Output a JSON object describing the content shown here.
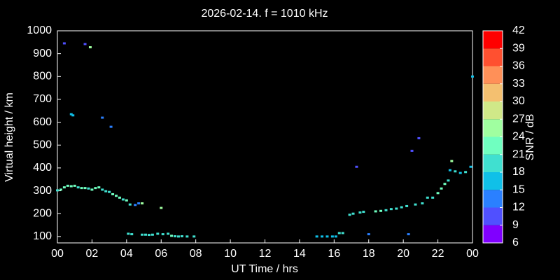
{
  "chart_data": {
    "type": "scatter",
    "title": "2026-02-14. f = 1010 kHz",
    "x_label": "UT Time / hrs",
    "y_label": "Virtual height / km",
    "xlim": [
      0,
      24
    ],
    "xticks": [
      {
        "value": 0,
        "label": "00"
      },
      {
        "value": 2,
        "label": "02"
      },
      {
        "value": 4,
        "label": "04"
      },
      {
        "value": 6,
        "label": "06"
      },
      {
        "value": 8,
        "label": "08"
      },
      10,
      12,
      14,
      16,
      18,
      20,
      22,
      {
        "value": 24,
        "label": "00"
      }
    ],
    "ylim": [
      72,
      1000
    ],
    "yticks": [
      100,
      200,
      300,
      400,
      500,
      600,
      700,
      800,
      900,
      1000
    ],
    "colorbar_label": "SNR / dB",
    "colorbar_ticks": [
      6,
      9,
      12,
      15,
      18,
      21,
      24,
      27,
      30,
      33,
      36,
      39,
      42
    ],
    "colorbar_colors": [
      "#8000ff",
      "#5050ff",
      "#2a80ff",
      "#10c0e8",
      "#40e0d0",
      "#70ffc0",
      "#a0ffa0",
      "#d0e888",
      "#f4c070",
      "#ff9058",
      "#ff5030",
      "#ff0000"
    ],
    "x": [
      0.0,
      0.2,
      0.4,
      0.6,
      0.8,
      1.0,
      1.2,
      1.4,
      1.6,
      1.8,
      2.0,
      2.2,
      2.4,
      2.6,
      2.8,
      3.0,
      3.2,
      3.4,
      3.6,
      3.8,
      4.0,
      4.2,
      4.5,
      4.7,
      4.9,
      0.4,
      1.6,
      1.9,
      0.8,
      0.9,
      2.6,
      3.1,
      6.0,
      4.1,
      4.3,
      4.9,
      5.1,
      5.3,
      5.5,
      5.8,
      6.1,
      6.4,
      6.6,
      6.8,
      7.0,
      7.2,
      7.5,
      7.9,
      15.0,
      15.3,
      15.6,
      15.9,
      16.1,
      16.3,
      16.5,
      16.9,
      17.1,
      17.3,
      17.5,
      17.7,
      18.0,
      18.4,
      18.7,
      19.0,
      19.3,
      19.6,
      19.9,
      20.2,
      20.3,
      20.5,
      20.7,
      20.9,
      21.1,
      21.4,
      21.7,
      22.0,
      22.2,
      22.4,
      22.6,
      22.7,
      22.8,
      23.0,
      23.3,
      23.6,
      23.9,
      24.0
    ],
    "y": [
      302,
      305,
      315,
      322,
      320,
      322,
      315,
      312,
      312,
      310,
      305,
      312,
      315,
      305,
      298,
      295,
      285,
      278,
      270,
      262,
      258,
      240,
      238,
      245,
      245,
      945,
      942,
      928,
      635,
      630,
      620,
      580,
      225,
      112,
      110,
      108,
      108,
      107,
      108,
      112,
      110,
      112,
      103,
      101,
      100,
      101,
      100,
      100,
      100,
      100,
      100,
      100,
      100,
      115,
      115,
      195,
      200,
      405,
      205,
      208,
      110,
      210,
      212,
      215,
      220,
      222,
      228,
      233,
      110,
      475,
      240,
      530,
      245,
      270,
      270,
      290,
      310,
      330,
      345,
      390,
      430,
      385,
      378,
      382,
      405,
      800
    ],
    "snr": [
      20,
      21,
      22,
      22,
      21,
      23,
      20,
      22,
      21,
      20,
      21,
      22,
      22,
      20,
      19,
      19,
      21,
      22,
      22,
      20,
      21,
      19,
      13,
      14,
      24,
      10,
      10,
      24,
      16,
      15,
      13,
      14,
      24,
      20,
      20,
      18,
      18,
      19,
      19,
      18,
      19,
      20,
      21,
      20,
      19,
      20,
      19,
      18,
      16,
      16,
      16,
      15,
      16,
      19,
      19,
      18,
      19,
      10,
      18,
      20,
      13,
      22,
      21,
      20,
      18,
      18,
      20,
      19,
      13,
      10,
      18,
      10,
      19,
      18,
      19,
      21,
      22,
      21,
      19,
      17,
      24,
      18,
      16,
      18,
      15,
      16
    ]
  }
}
